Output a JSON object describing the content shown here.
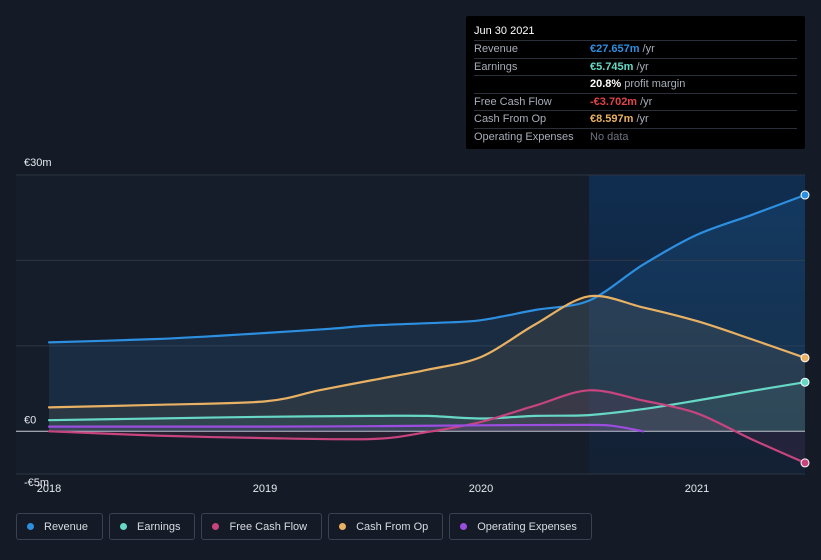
{
  "tooltip": {
    "date": "Jun 30 2021",
    "rows": [
      {
        "label": "Revenue",
        "value": "€27.657m",
        "unit": "/yr",
        "color": "#2d8fe0"
      },
      {
        "label": "Earnings",
        "value": "€5.745m",
        "unit": "/yr",
        "color": "#67d8c6"
      },
      {
        "label": "",
        "value": "20.8%",
        "unit": "profit margin",
        "color": "#ffffff"
      },
      {
        "label": "Free Cash Flow",
        "value": "-€3.702m",
        "unit": "/yr",
        "color": "#e0434b"
      },
      {
        "label": "Cash From Op",
        "value": "€8.597m",
        "unit": "/yr",
        "color": "#e8b164"
      },
      {
        "label": "Operating Expenses",
        "value": "No data",
        "unit": "",
        "color": "#6c7280"
      }
    ]
  },
  "legend": [
    {
      "label": "Revenue",
      "color": "#2d8fe0"
    },
    {
      "label": "Earnings",
      "color": "#67d8c6"
    },
    {
      "label": "Free Cash Flow",
      "color": "#c7447f"
    },
    {
      "label": "Cash From Op",
      "color": "#e8b164"
    },
    {
      "label": "Operating Expenses",
      "color": "#9b4de0"
    }
  ],
  "chart_data": {
    "type": "area",
    "ylim": [
      -5,
      30
    ],
    "yticks": [
      {
        "value": 30,
        "label": "€30m"
      },
      {
        "value": 0,
        "label": "€0"
      },
      {
        "value": -5,
        "label": "-€5m"
      }
    ],
    "xlim": [
      2017.9,
      2021.5
    ],
    "xticks": [
      {
        "value": 2018,
        "label": "2018"
      },
      {
        "value": 2019,
        "label": "2019"
      },
      {
        "value": 2020,
        "label": "2020"
      },
      {
        "value": 2021,
        "label": "2021"
      }
    ],
    "highlight_start": 2020.5,
    "series": [
      {
        "name": "Revenue",
        "color": "#2d8fe0",
        "points": [
          [
            2018.0,
            10.4
          ],
          [
            2018.5,
            10.8
          ],
          [
            2018.8,
            11.2
          ],
          [
            2019.0,
            11.5
          ],
          [
            2019.3,
            12.0
          ],
          [
            2019.5,
            12.4
          ],
          [
            2019.8,
            12.7
          ],
          [
            2020.0,
            13.0
          ],
          [
            2020.25,
            14.2
          ],
          [
            2020.5,
            15.3
          ],
          [
            2020.75,
            19.5
          ],
          [
            2021.0,
            23.0
          ],
          [
            2021.25,
            25.3
          ],
          [
            2021.5,
            27.657
          ]
        ]
      },
      {
        "name": "Earnings",
        "color": "#67d8c6",
        "points": [
          [
            2018.0,
            1.3
          ],
          [
            2018.5,
            1.5
          ],
          [
            2019.0,
            1.7
          ],
          [
            2019.5,
            1.8
          ],
          [
            2019.75,
            1.8
          ],
          [
            2020.0,
            1.5
          ],
          [
            2020.25,
            1.8
          ],
          [
            2020.5,
            1.9
          ],
          [
            2020.75,
            2.6
          ],
          [
            2021.0,
            3.6
          ],
          [
            2021.25,
            4.7
          ],
          [
            2021.5,
            5.745
          ]
        ]
      },
      {
        "name": "Free Cash Flow",
        "color": "#c7447f",
        "points": [
          [
            2018.0,
            0.0
          ],
          [
            2018.5,
            -0.5
          ],
          [
            2019.0,
            -0.8
          ],
          [
            2019.5,
            -0.9
          ],
          [
            2019.75,
            -0.1
          ],
          [
            2020.0,
            1.1
          ],
          [
            2020.25,
            3.0
          ],
          [
            2020.5,
            4.8
          ],
          [
            2020.75,
            3.6
          ],
          [
            2021.0,
            2.1
          ],
          [
            2021.25,
            -0.9
          ],
          [
            2021.5,
            -3.702
          ]
        ]
      },
      {
        "name": "Cash From Op",
        "color": "#e8b164",
        "points": [
          [
            2018.0,
            2.8
          ],
          [
            2018.5,
            3.1
          ],
          [
            2019.0,
            3.5
          ],
          [
            2019.25,
            4.8
          ],
          [
            2019.5,
            6.0
          ],
          [
            2019.75,
            7.2
          ],
          [
            2020.0,
            8.7
          ],
          [
            2020.25,
            12.5
          ],
          [
            2020.5,
            15.8
          ],
          [
            2020.75,
            14.5
          ],
          [
            2021.0,
            12.9
          ],
          [
            2021.25,
            10.8
          ],
          [
            2021.5,
            8.597
          ]
        ]
      },
      {
        "name": "Operating Expenses",
        "color": "#9b4de0",
        "points": [
          [
            2018.0,
            0.55
          ],
          [
            2018.5,
            0.55
          ],
          [
            2019.0,
            0.55
          ],
          [
            2019.5,
            0.6
          ],
          [
            2020.0,
            0.7
          ],
          [
            2020.5,
            0.75
          ],
          [
            2020.62,
            0.6
          ],
          [
            2020.75,
            0.0
          ]
        ]
      }
    ]
  }
}
